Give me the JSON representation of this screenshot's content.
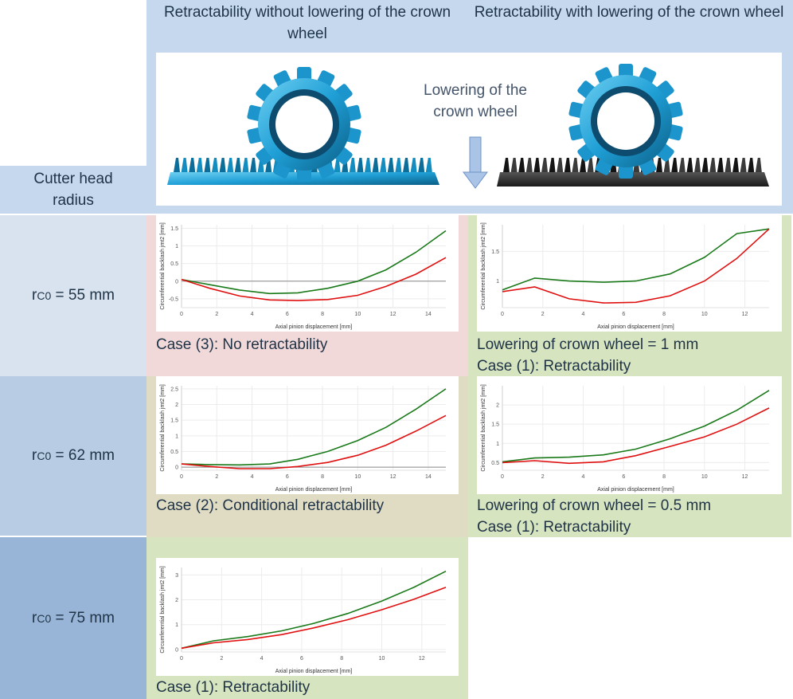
{
  "header": {
    "left_title": "Retractability without lowering of the crown wheel",
    "right_title": "Retractability with lowering of the crown wheel",
    "lowering_label": "Lowering of the crown wheel"
  },
  "rows_header": {
    "label": "Cutter head radius"
  },
  "rows": [
    {
      "radius_prefix": "r",
      "radius_sub": "C0",
      "radius_value": " = 55 mm"
    },
    {
      "radius_prefix": "r",
      "radius_sub": "C0",
      "radius_value": " = 62 mm"
    },
    {
      "radius_prefix": "r",
      "radius_sub": "C0",
      "radius_value": " = 75 mm"
    }
  ],
  "captions": {
    "r1_left": "Case (3): No retractability",
    "r1_right_1": "Lowering of crown wheel = 1 mm",
    "r1_right_2": "Case (1): Retractability",
    "r2_left": "Case (2): Conditional retractability",
    "r2_right_1": "Lowering of crown wheel = 0.5 mm",
    "r2_right_2": "Case (1): Retractability",
    "r3_left": "Case (1): Retractability"
  },
  "colors": {
    "green_series": "#1a7a1a",
    "red_series": "#e01010",
    "case_no": "#f1d9da",
    "case_conditional": "#e0dcc4",
    "case_yes": "#d6e4bf",
    "row1": "#d9e3ef",
    "row2": "#b8cde3",
    "row3": "#98b5d8",
    "header": "#c5d8ee",
    "gear": "#2eaee0"
  },
  "chart_data": [
    {
      "id": "chart-r1-left",
      "type": "line",
      "xlabel": "Axial pinion displacement [mm]",
      "ylabel": "Circumferential backlash jmt2 [mm]",
      "xlim": [
        0,
        15
      ],
      "ylim": [
        -0.75,
        1.6
      ],
      "xticks": [
        0,
        2,
        4,
        6,
        8,
        10,
        12,
        14
      ],
      "yticks": [
        -0.5,
        0,
        0.5,
        1,
        1.5
      ],
      "ytick_labels": [
        "-0.5",
        "0",
        "0.5",
        "1",
        "1.5"
      ],
      "zero_line": true,
      "series": [
        {
          "name": "green",
          "x": [
            0,
            1.6,
            3.3,
            5,
            6.6,
            8.3,
            10,
            11.6,
            13.3,
            15
          ],
          "y": [
            0.05,
            -0.1,
            -0.25,
            -0.35,
            -0.33,
            -0.2,
            0.0,
            0.32,
            0.82,
            1.43
          ]
        },
        {
          "name": "red",
          "x": [
            0,
            1.6,
            3.3,
            5,
            6.6,
            8.3,
            10,
            11.6,
            13.3,
            15
          ],
          "y": [
            0.05,
            -0.2,
            -0.42,
            -0.53,
            -0.55,
            -0.52,
            -0.4,
            -0.15,
            0.2,
            0.67
          ]
        }
      ]
    },
    {
      "id": "chart-r1-right",
      "type": "line",
      "xlabel": "Axial pinion displacement [mm]",
      "ylabel": "Circumferential backlash jmt2 [mm]",
      "xlim": [
        0,
        13.2
      ],
      "ylim": [
        0.55,
        1.95
      ],
      "xticks": [
        0,
        2,
        4,
        6,
        8,
        10,
        12
      ],
      "yticks": [
        1,
        1.5
      ],
      "ytick_labels": [
        "1",
        "1.5"
      ],
      "zero_line": false,
      "series": [
        {
          "name": "green",
          "x": [
            0,
            1.6,
            3.3,
            5,
            6.6,
            8.3,
            10,
            11.6,
            13.2
          ],
          "y": [
            0.85,
            1.05,
            1.0,
            0.98,
            1.0,
            1.12,
            1.4,
            1.8,
            1.88
          ]
        },
        {
          "name": "red",
          "x": [
            0,
            1.6,
            3.3,
            5,
            6.6,
            8.3,
            10,
            11.6,
            13.2
          ],
          "y": [
            0.82,
            0.9,
            0.7,
            0.63,
            0.64,
            0.75,
            1.0,
            1.38,
            1.88
          ]
        }
      ]
    },
    {
      "id": "chart-r2-left",
      "type": "line",
      "xlabel": "Axial pinion displacement [mm]",
      "ylabel": "Circumferential backlash jmt2 [mm]",
      "xlim": [
        0,
        15
      ],
      "ylim": [
        -0.1,
        2.6
      ],
      "xticks": [
        0,
        2,
        4,
        6,
        8,
        10,
        12,
        14
      ],
      "yticks": [
        0,
        0.5,
        1,
        1.5,
        2,
        2.5
      ],
      "ytick_labels": [
        "0",
        "0.5",
        "1",
        "1.5",
        "2",
        "2.5"
      ],
      "zero_line": true,
      "series": [
        {
          "name": "green",
          "x": [
            0,
            1.6,
            3.3,
            5,
            6.6,
            8.3,
            10,
            11.6,
            13.3,
            15
          ],
          "y": [
            0.1,
            0.08,
            0.07,
            0.1,
            0.25,
            0.5,
            0.85,
            1.27,
            1.85,
            2.5
          ]
        },
        {
          "name": "red",
          "x": [
            0,
            1.6,
            3.3,
            5,
            6.6,
            8.3,
            10,
            11.6,
            13.3,
            15
          ],
          "y": [
            0.1,
            0.02,
            -0.05,
            -0.05,
            0.02,
            0.15,
            0.38,
            0.7,
            1.15,
            1.65
          ]
        }
      ]
    },
    {
      "id": "chart-r2-right",
      "type": "line",
      "xlabel": "Axial pinion displacement [mm]",
      "ylabel": "Circumferential backlash jmt2 [mm]",
      "xlim": [
        0,
        13.2
      ],
      "ylim": [
        0.3,
        2.5
      ],
      "xticks": [
        0,
        2,
        4,
        6,
        8,
        10,
        12
      ],
      "yticks": [
        0.5,
        1,
        1.5,
        2
      ],
      "ytick_labels": [
        "0.5",
        "1",
        "1.5",
        "2"
      ],
      "zero_line": false,
      "series": [
        {
          "name": "green",
          "x": [
            0,
            1.6,
            3.3,
            5,
            6.6,
            8.3,
            10,
            11.6,
            13.2
          ],
          "y": [
            0.52,
            0.62,
            0.64,
            0.7,
            0.85,
            1.12,
            1.45,
            1.86,
            2.38
          ]
        },
        {
          "name": "red",
          "x": [
            0,
            1.6,
            3.3,
            5,
            6.6,
            8.3,
            10,
            11.6,
            13.2
          ],
          "y": [
            0.5,
            0.55,
            0.48,
            0.52,
            0.68,
            0.92,
            1.17,
            1.5,
            1.92
          ]
        }
      ]
    },
    {
      "id": "chart-r3-left",
      "type": "line",
      "xlabel": "Axial pinion displacement [mm]",
      "ylabel": "Circumferential backlash jmt2 [mm]",
      "xlim": [
        0,
        13.2
      ],
      "ylim": [
        -0.1,
        3.3
      ],
      "xticks": [
        0,
        2,
        4,
        6,
        8,
        10,
        12
      ],
      "yticks": [
        0,
        1,
        2,
        3
      ],
      "ytick_labels": [
        "0",
        "1",
        "2",
        "3"
      ],
      "zero_line": false,
      "series": [
        {
          "name": "green",
          "x": [
            0,
            1.6,
            3.3,
            5,
            6.6,
            8.3,
            10,
            11.6,
            13.2
          ],
          "y": [
            0.05,
            0.35,
            0.52,
            0.75,
            1.05,
            1.45,
            1.95,
            2.5,
            3.15
          ]
        },
        {
          "name": "red",
          "x": [
            0,
            1.6,
            3.3,
            5,
            6.6,
            8.3,
            10,
            11.6,
            13.2
          ],
          "y": [
            0.05,
            0.27,
            0.4,
            0.6,
            0.87,
            1.2,
            1.6,
            2.02,
            2.5
          ]
        }
      ]
    }
  ]
}
